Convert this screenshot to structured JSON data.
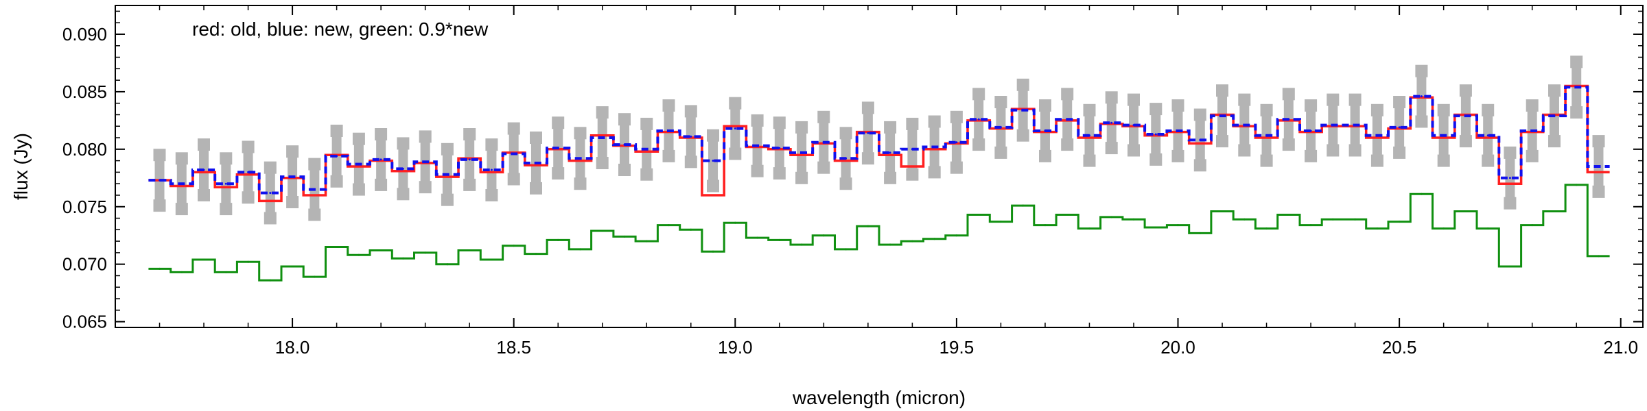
{
  "chart_data": {
    "type": "line",
    "annotation": "red: old, blue: new, green: 0.9*new",
    "xlabel": "wavelength (micron)",
    "ylabel": "flux (Jy)",
    "xlim": [
      17.6,
      21.05
    ],
    "ylim": [
      0.0645,
      0.0925
    ],
    "xticks": [
      "18.0",
      "18.5",
      "19.0",
      "19.5",
      "20.0",
      "20.5",
      "21.0"
    ],
    "yticks": [
      "0.065",
      "0.070",
      "0.075",
      "0.080",
      "0.085",
      "0.090"
    ],
    "colors": {
      "old": "#ff2020",
      "new": "#1010ee",
      "scaled": "#109010",
      "errors": "#b4b4b4"
    },
    "sample_step": 0.05,
    "x": [
      17.7,
      17.75,
      17.8,
      17.85,
      17.9,
      17.95,
      18.0,
      18.05,
      18.1,
      18.15,
      18.2,
      18.25,
      18.3,
      18.35,
      18.4,
      18.45,
      18.5,
      18.55,
      18.6,
      18.65,
      18.7,
      18.75,
      18.8,
      18.85,
      18.9,
      18.95,
      19.0,
      19.05,
      19.1,
      19.15,
      19.2,
      19.25,
      19.3,
      19.35,
      19.4,
      19.45,
      19.5,
      19.55,
      19.6,
      19.65,
      19.7,
      19.75,
      19.8,
      19.85,
      19.9,
      19.95,
      20.0,
      20.05,
      20.1,
      20.15,
      20.2,
      20.25,
      20.3,
      20.35,
      20.4,
      20.45,
      20.5,
      20.55,
      20.6,
      20.65,
      20.7,
      20.75,
      20.8,
      20.85,
      20.9,
      20.95
    ],
    "series": [
      {
        "name": "old",
        "values": [
          0.0773,
          0.0768,
          0.078,
          0.0767,
          0.0778,
          0.0755,
          0.0775,
          0.076,
          0.0795,
          0.0785,
          0.079,
          0.0781,
          0.0788,
          0.0776,
          0.0792,
          0.078,
          0.0797,
          0.0786,
          0.08,
          0.079,
          0.0812,
          0.0803,
          0.0798,
          0.0815,
          0.081,
          0.076,
          0.082,
          0.0802,
          0.08,
          0.0795,
          0.0805,
          0.079,
          0.0815,
          0.0795,
          0.0785,
          0.08,
          0.0805,
          0.0825,
          0.0818,
          0.0835,
          0.0815,
          0.0825,
          0.081,
          0.0822,
          0.082,
          0.0812,
          0.0815,
          0.0805,
          0.083,
          0.082,
          0.081,
          0.0825,
          0.0815,
          0.082,
          0.082,
          0.081,
          0.0818,
          0.0845,
          0.081,
          0.083,
          0.081,
          0.077,
          0.0815,
          0.083,
          0.0855,
          0.078
        ]
      },
      {
        "name": "new",
        "values": [
          0.0773,
          0.077,
          0.0782,
          0.077,
          0.078,
          0.0762,
          0.0776,
          0.0765,
          0.0794,
          0.0787,
          0.0791,
          0.0783,
          0.0789,
          0.0778,
          0.0791,
          0.0782,
          0.0796,
          0.0788,
          0.0801,
          0.0792,
          0.081,
          0.0804,
          0.08,
          0.0816,
          0.0811,
          0.079,
          0.0818,
          0.0803,
          0.0801,
          0.0797,
          0.0806,
          0.0792,
          0.0814,
          0.0797,
          0.08,
          0.0802,
          0.0806,
          0.0826,
          0.0819,
          0.0834,
          0.0816,
          0.0826,
          0.0812,
          0.0823,
          0.0821,
          0.0813,
          0.0816,
          0.0808,
          0.0829,
          0.0821,
          0.0812,
          0.0826,
          0.0816,
          0.0821,
          0.0821,
          0.0812,
          0.0819,
          0.0846,
          0.0812,
          0.0829,
          0.0812,
          0.0775,
          0.0816,
          0.0829,
          0.0854,
          0.0785
        ]
      },
      {
        "name": "0.9*new",
        "values": [
          0.0696,
          0.0693,
          0.0704,
          0.0693,
          0.0702,
          0.0686,
          0.0698,
          0.0689,
          0.0715,
          0.0708,
          0.0712,
          0.0705,
          0.071,
          0.07,
          0.0712,
          0.0704,
          0.0716,
          0.0709,
          0.0721,
          0.0713,
          0.0729,
          0.0724,
          0.072,
          0.0734,
          0.073,
          0.0711,
          0.0736,
          0.0723,
          0.0721,
          0.0717,
          0.0725,
          0.0713,
          0.0733,
          0.0717,
          0.072,
          0.0722,
          0.0725,
          0.0743,
          0.0737,
          0.0751,
          0.0734,
          0.0743,
          0.0731,
          0.0741,
          0.0739,
          0.0732,
          0.0734,
          0.0727,
          0.0746,
          0.0739,
          0.0731,
          0.0743,
          0.0734,
          0.0739,
          0.0739,
          0.0731,
          0.0737,
          0.0761,
          0.0731,
          0.0746,
          0.0731,
          0.0698,
          0.0734,
          0.0746,
          0.0769,
          0.0707
        ]
      }
    ],
    "error_half_width": 0.0022,
    "grid": false,
    "legend": "none"
  }
}
